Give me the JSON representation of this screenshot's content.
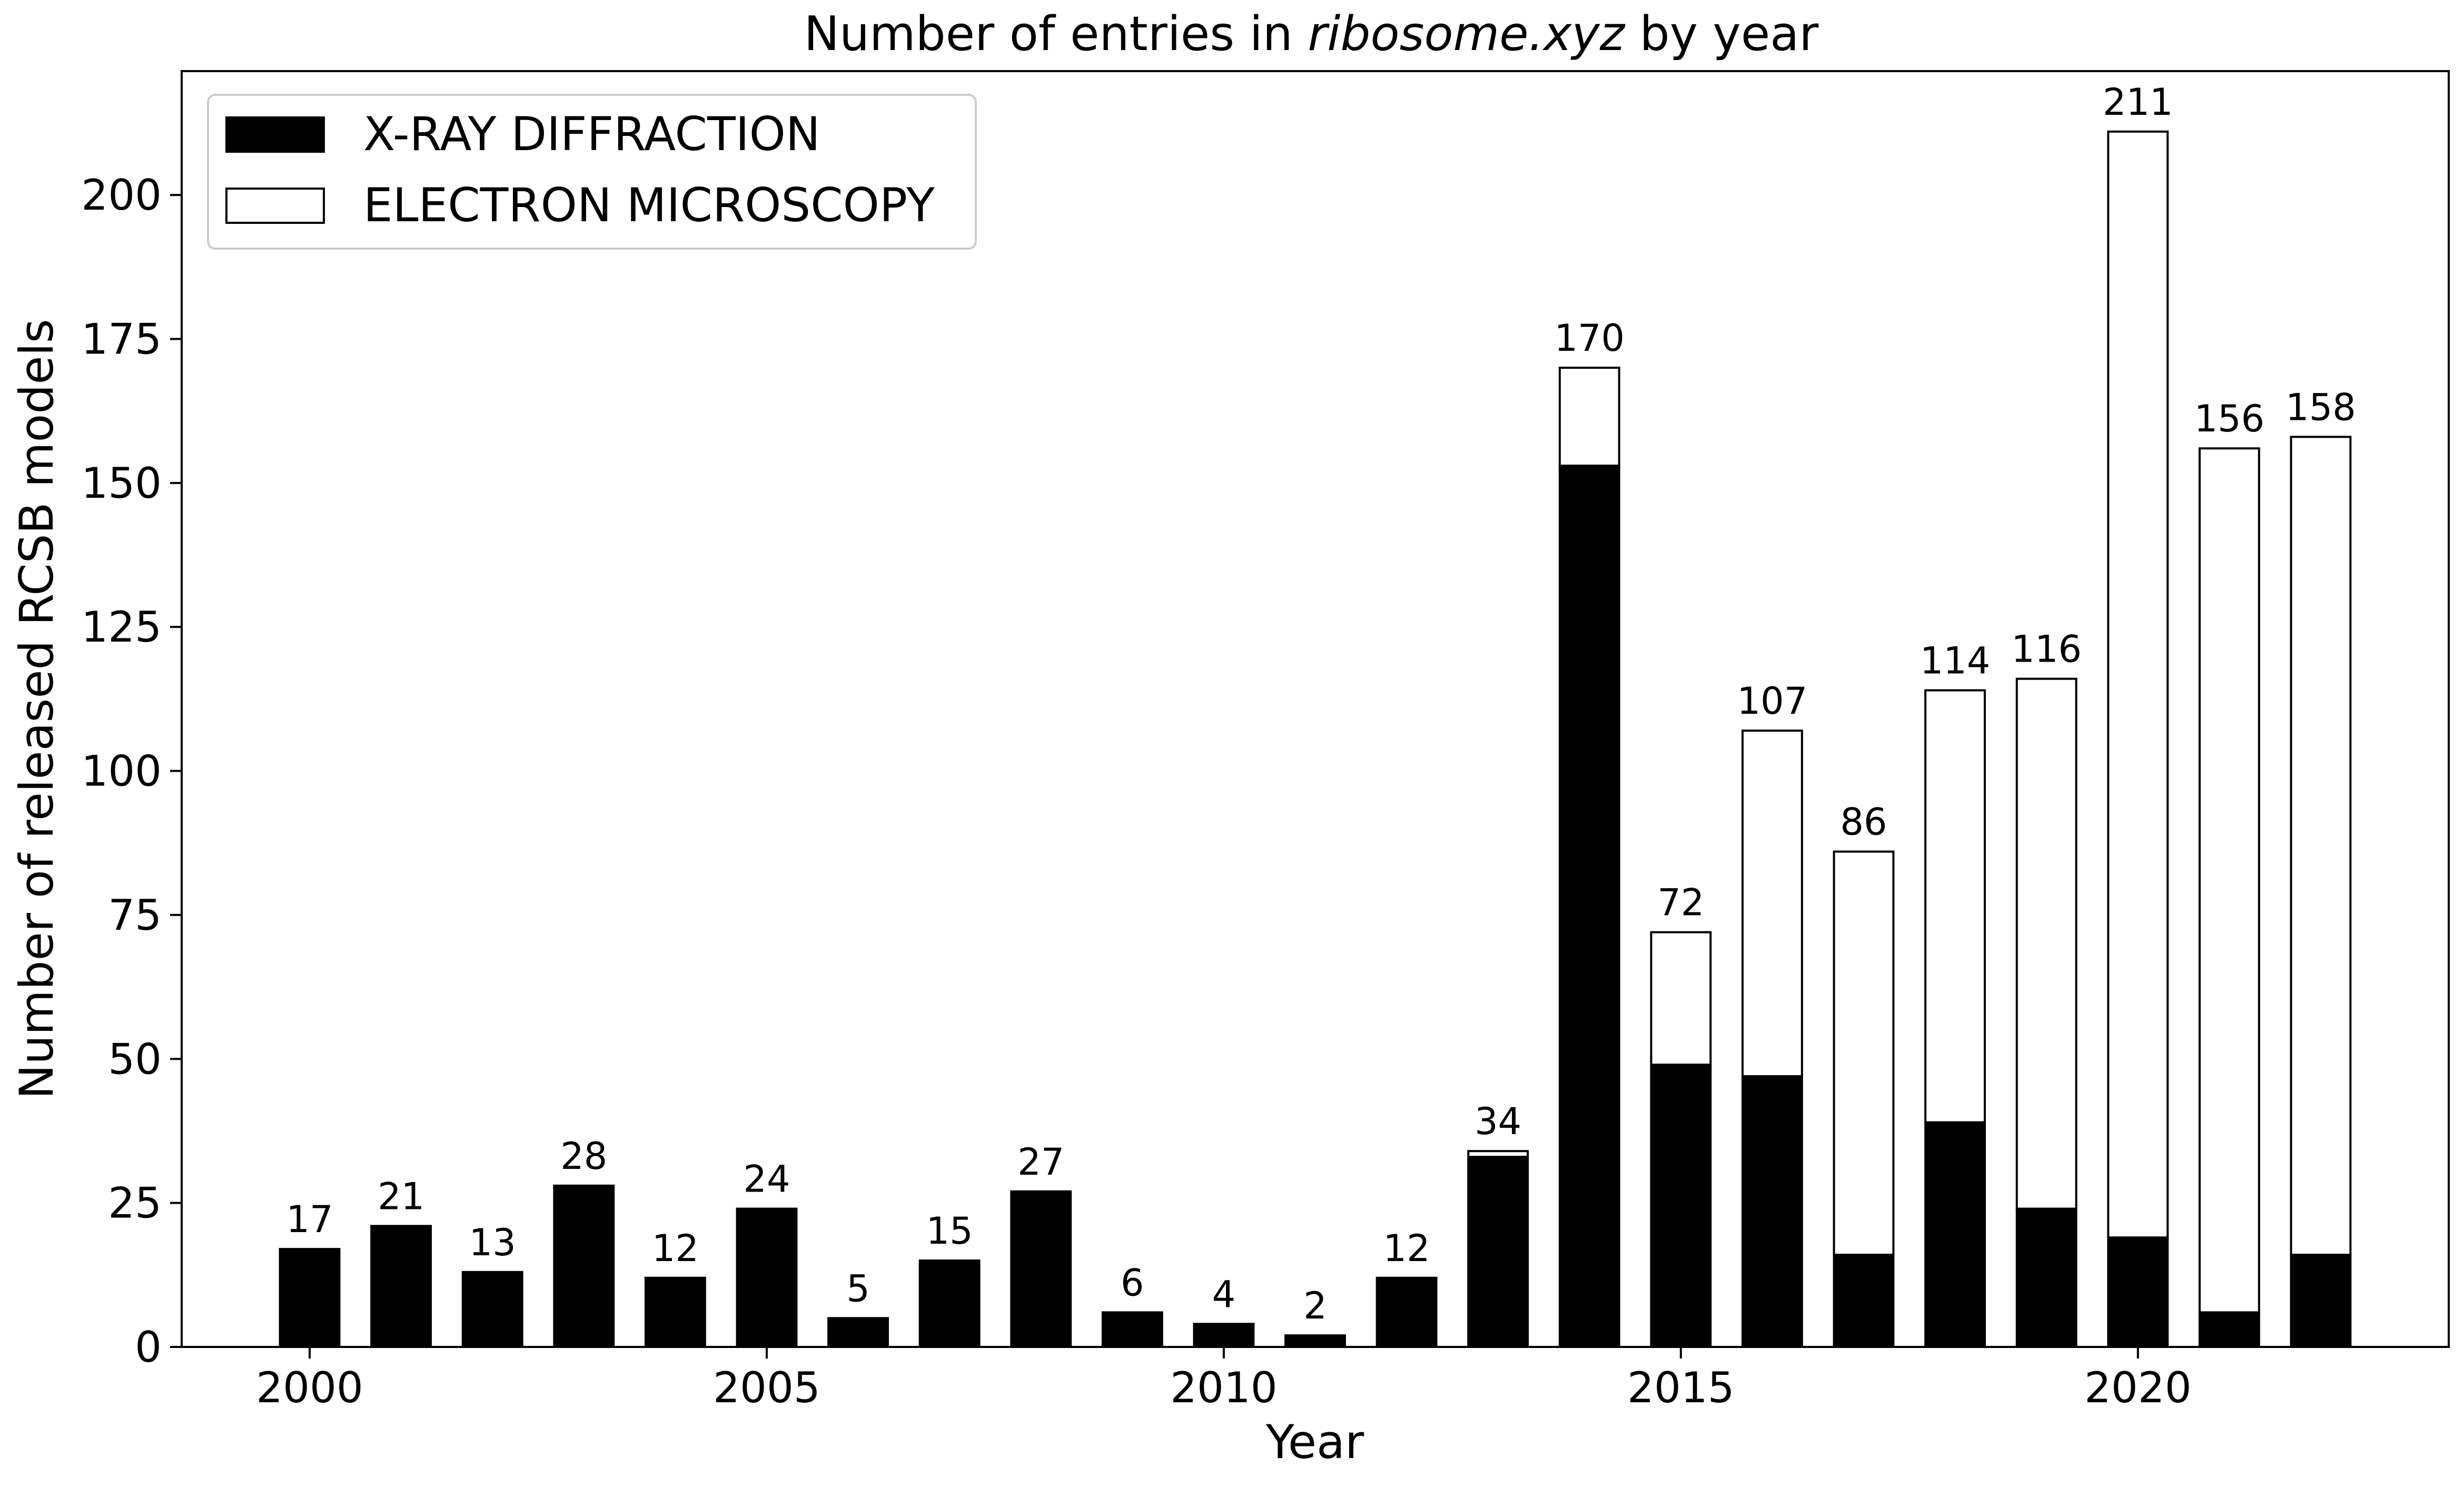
{
  "chart_data": {
    "type": "bar",
    "stacked": true,
    "title_parts": {
      "prefix": "Number of entries in ",
      "italic": "ribosome.xyz",
      "suffix": "  by year"
    },
    "xlabel": "Year",
    "ylabel": "Number of released RCSB models",
    "xlim": [
      1998.6,
      2023.4
    ],
    "ylim": [
      0,
      221.5
    ],
    "xticks": [
      2000,
      2005,
      2010,
      2015,
      2020
    ],
    "yticks": [
      0,
      25,
      50,
      75,
      100,
      125,
      150,
      175,
      200
    ],
    "grid": false,
    "legend_position": "top-left",
    "x": [
      2000,
      2001,
      2002,
      2003,
      2004,
      2005,
      2006,
      2007,
      2008,
      2009,
      2010,
      2011,
      2012,
      2013,
      2014,
      2015,
      2016,
      2017,
      2018,
      2019,
      2020,
      2021,
      2022
    ],
    "series": [
      {
        "name": "X-RAY DIFFRACTION",
        "color": "#000000",
        "values": [
          17,
          21,
          13,
          28,
          12,
          24,
          5,
          15,
          27,
          6,
          4,
          2,
          12,
          33,
          153,
          49,
          47,
          16,
          39,
          24,
          19,
          6,
          16
        ]
      },
      {
        "name": "ELECTRON MICROSCOPY",
        "color": "#ffffff",
        "values": [
          0,
          0,
          0,
          0,
          0,
          0,
          0,
          0,
          0,
          0,
          0,
          0,
          0,
          1,
          17,
          23,
          60,
          70,
          75,
          92,
          192,
          150,
          142
        ]
      }
    ],
    "totals": [
      17,
      21,
      13,
      28,
      12,
      24,
      5,
      15,
      27,
      6,
      4,
      2,
      12,
      34,
      170,
      72,
      107,
      86,
      114,
      116,
      211,
      156,
      158
    ]
  }
}
